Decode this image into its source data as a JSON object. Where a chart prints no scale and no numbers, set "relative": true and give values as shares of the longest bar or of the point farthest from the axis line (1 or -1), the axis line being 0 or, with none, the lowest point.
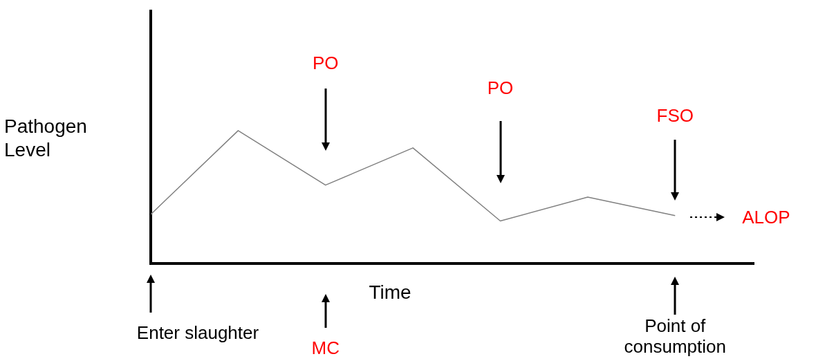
{
  "chart_data": {
    "type": "line",
    "relative": true,
    "xlabel": "Time",
    "ylabel": "Pathogen Level",
    "categories": [
      null,
      null,
      null,
      null,
      null,
      null,
      null
    ],
    "series": [
      {
        "color": "#808080",
        "values": [
          0.37,
          1,
          0.59,
          0.87,
          0.32,
          0.5,
          0.36
        ]
      }
    ],
    "annotations": [
      "PO",
      "PO",
      "FSO",
      "ALOP",
      "Enter slaughter",
      "MC",
      "Point of consumption"
    ],
    "grid": false,
    "legend": false,
    "marker": "none",
    "line_style": "solid"
  }
}
